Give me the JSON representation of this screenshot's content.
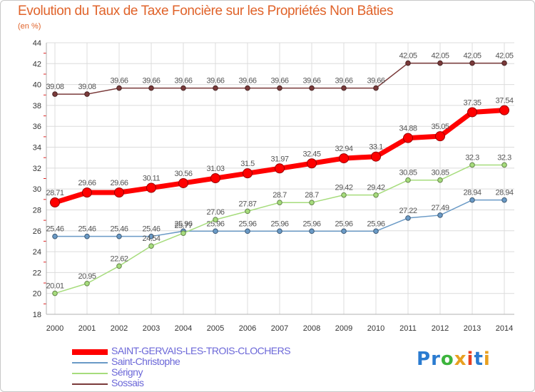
{
  "title": "Evolution du Taux de Taxe Foncière sur les Propriétés Non Bâties",
  "subtitle": "(en %)",
  "logo": {
    "text": "Proxiti",
    "letters": [
      "P",
      "r",
      "o",
      "x",
      "i",
      "t",
      "i"
    ],
    "colors": [
      "#2a7bd0",
      "#2a7bd0",
      "#3cb43c",
      "#e8a020",
      "#e84020",
      "#2a7bd0",
      "#e8a020"
    ]
  },
  "chart_data": {
    "type": "line",
    "title": "Evolution du Taux de Taxe Foncière sur les Propriétés Non Bâties",
    "ylabel": "(en %)",
    "xlabel": "",
    "x": [
      "2000",
      "2001",
      "2002",
      "2003",
      "2004",
      "2005",
      "2006",
      "2007",
      "2008",
      "2009",
      "2010",
      "2011",
      "2012",
      "2013",
      "2014"
    ],
    "ylim": [
      18,
      44
    ],
    "yticks": [
      18,
      20,
      22,
      24,
      26,
      28,
      30,
      32,
      34,
      36,
      38,
      40,
      42,
      44
    ],
    "grid": true,
    "legend_position": "bottom-left",
    "series": [
      {
        "name": "SAINT-GERVAIS-LES-TROIS-CLOCHERS",
        "color": "#ff0000",
        "values": [
          28.71,
          29.66,
          29.66,
          30.11,
          30.56,
          31.03,
          31.5,
          31.97,
          32.45,
          32.94,
          33.1,
          34.88,
          35.05,
          37.35,
          37.54
        ],
        "labels": [
          "28.71",
          "29.66",
          "29.66",
          "30.11",
          "30.56",
          "31.03",
          "31.5",
          "31.97",
          "32.45",
          "32.94",
          "33.1",
          "34.88",
          "35.05",
          "37.35",
          "37.54"
        ]
      },
      {
        "name": "Saint-Christophe",
        "color": "#6a9ac6",
        "values": [
          25.46,
          25.46,
          25.46,
          25.46,
          25.96,
          25.96,
          25.96,
          25.96,
          25.96,
          25.96,
          25.96,
          27.22,
          27.49,
          28.94,
          28.94
        ],
        "labels": [
          "25.46",
          "25.46",
          "25.46",
          "25.46",
          "25.96",
          "25.96",
          "25.96",
          "25.96",
          "25.96",
          "25.96",
          "25.96",
          "27.22",
          "27.49",
          "28.94",
          "28.94"
        ]
      },
      {
        "name": "Sérigny",
        "color": "#a6dc7c",
        "values": [
          20.01,
          20.95,
          22.62,
          24.54,
          25.77,
          27.06,
          27.87,
          28.7,
          28.7,
          29.42,
          29.42,
          30.85,
          30.85,
          32.3,
          32.3
        ],
        "labels": [
          "20.01",
          "20.95",
          "22.62",
          "24.54",
          "25.77",
          "27.06",
          "27.87",
          "28.7",
          "28.7",
          "29.42",
          "29.42",
          "30.85",
          "30.85",
          "32.3",
          "32.3"
        ]
      },
      {
        "name": "Sossais",
        "color": "#7a3a3a",
        "values": [
          39.08,
          39.08,
          39.66,
          39.66,
          39.66,
          39.66,
          39.66,
          39.66,
          39.66,
          39.66,
          39.66,
          42.05,
          42.05,
          42.05,
          42.05
        ],
        "labels": [
          "39.08",
          "39.08",
          "39.66",
          "39.66",
          "39.66",
          "39.66",
          "39.66",
          "39.66",
          "39.66",
          "39.66",
          "39.66",
          "42.05",
          "42.05",
          "42.05",
          "42.05"
        ]
      }
    ]
  }
}
